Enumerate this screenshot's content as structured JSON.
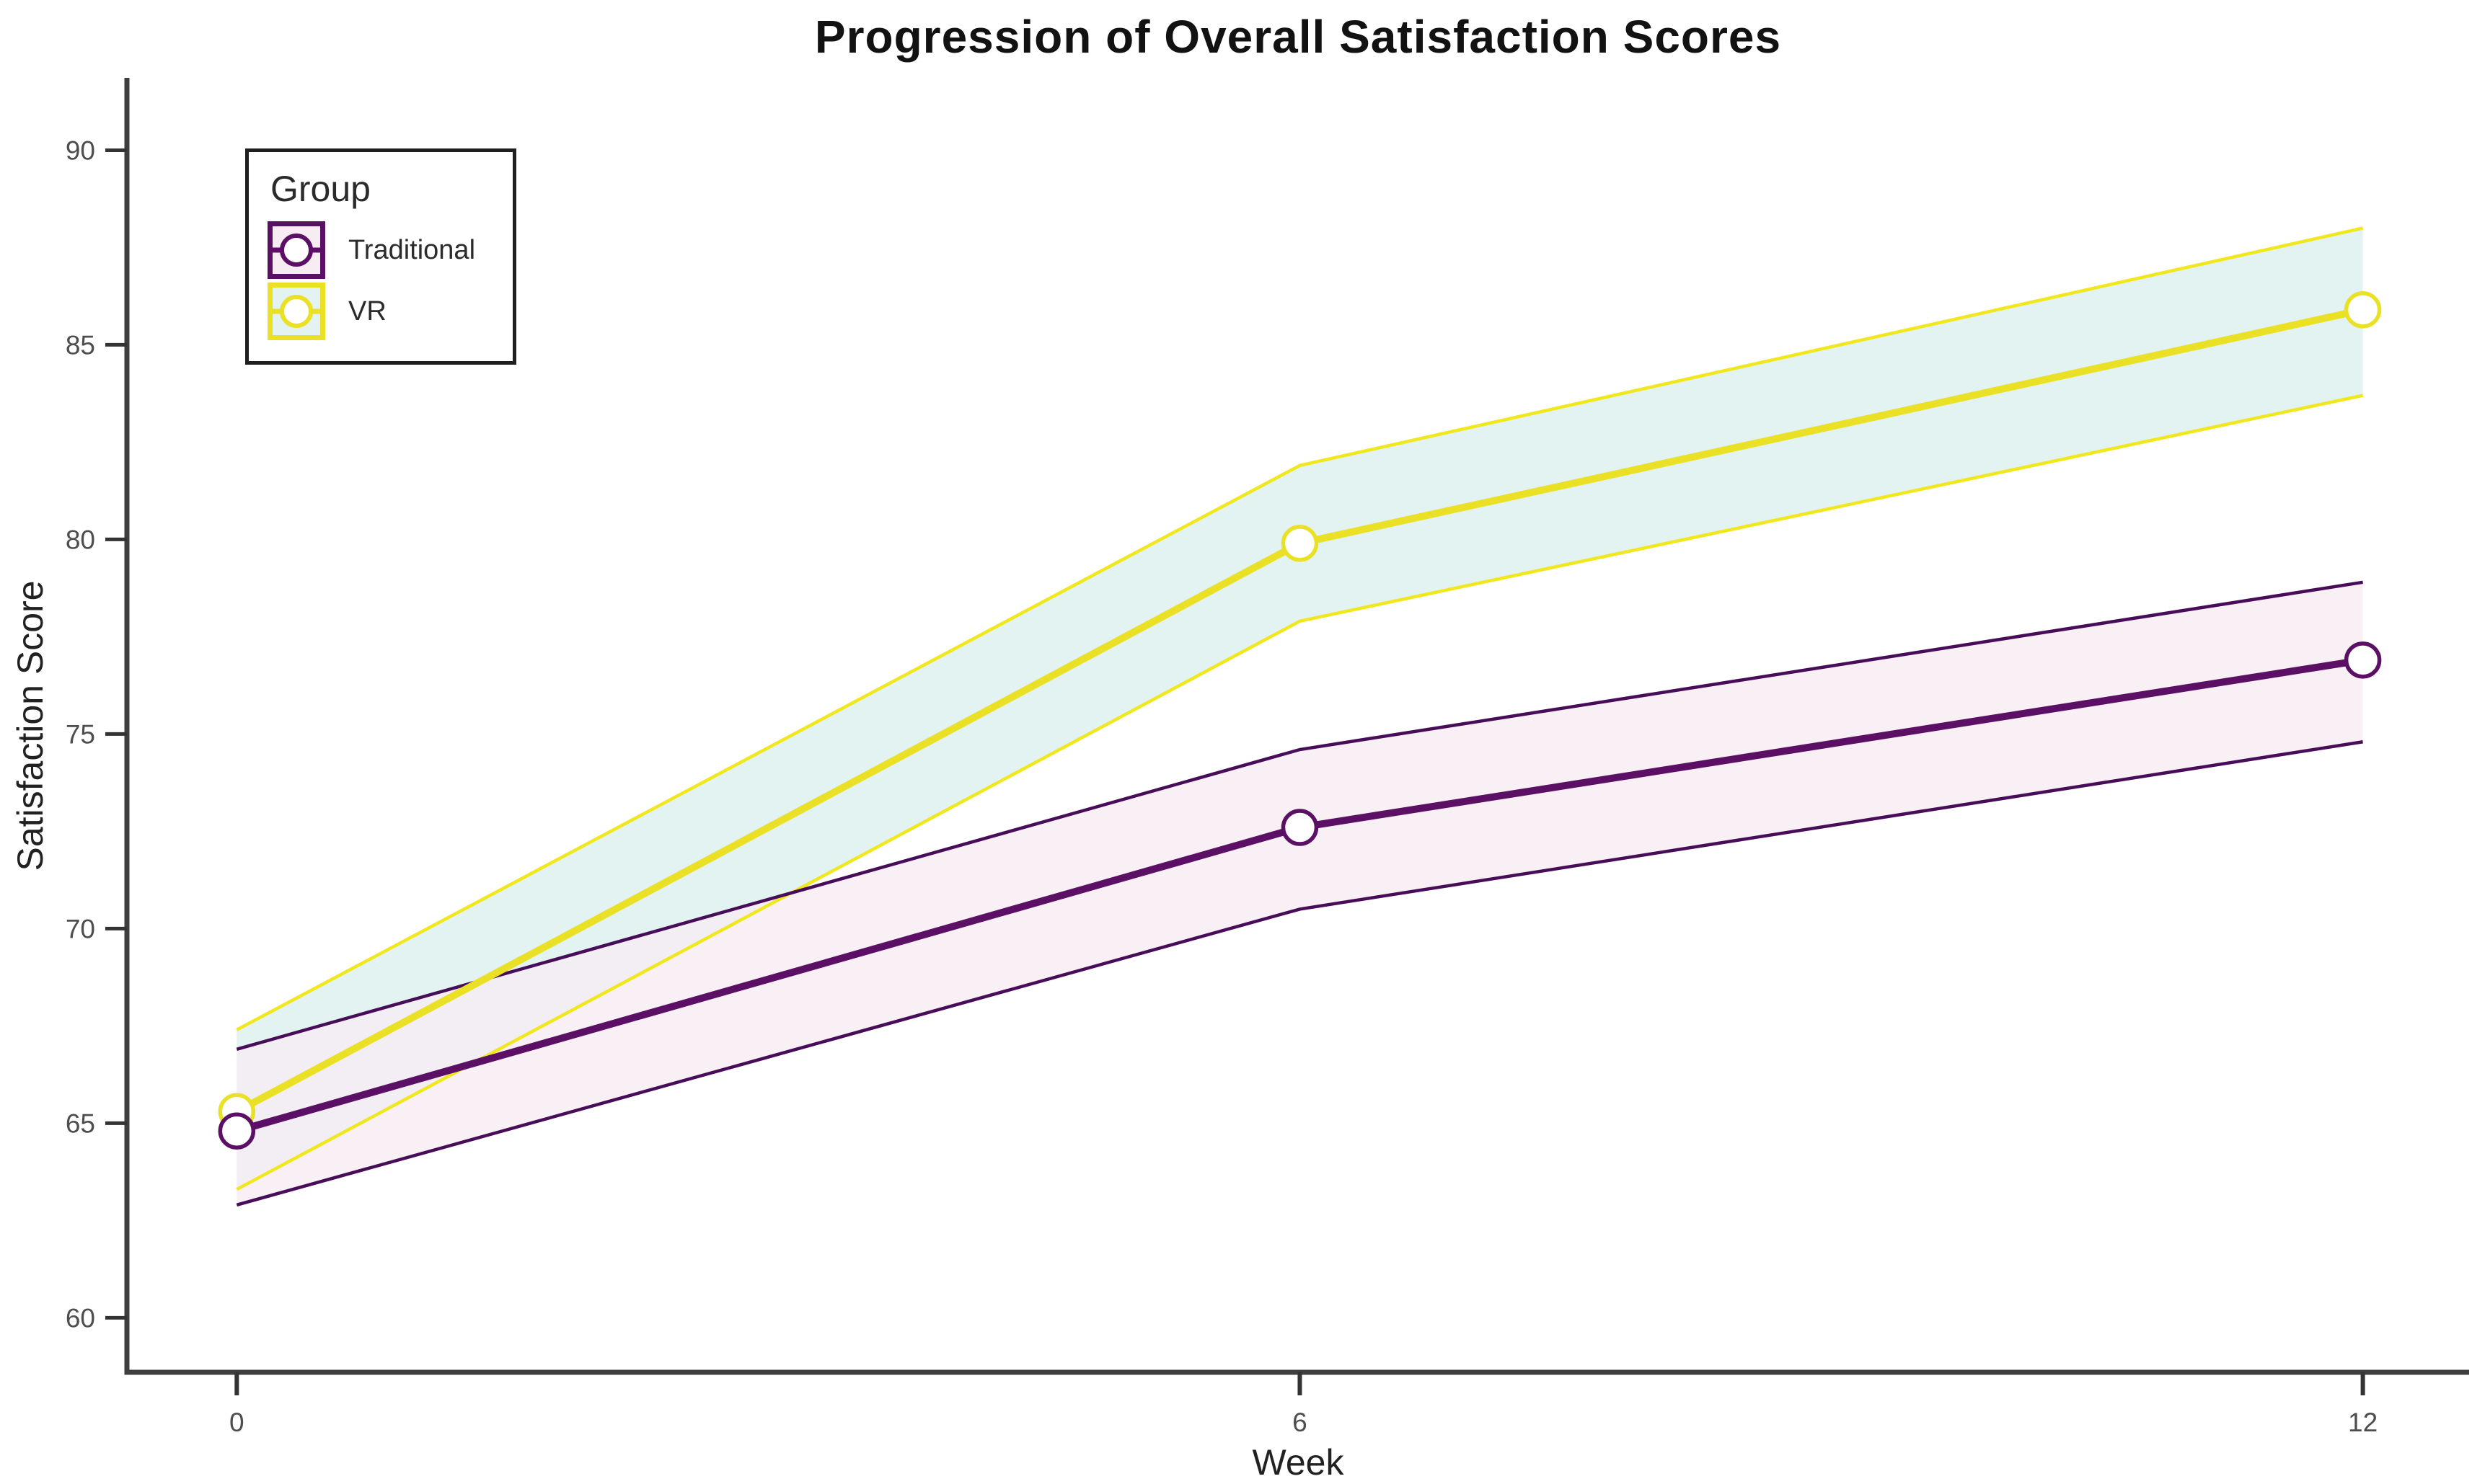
{
  "page": {
    "title": "Progression of Overall Satisfaction Scores"
  },
  "colors": {
    "background": "#FFFFFF",
    "title_text": "#121212",
    "axis_line": "#3F3F3F",
    "tick_mark": "#333333",
    "tick_label": "#4D4D4D",
    "axis_title_text": "#212121",
    "legend_border": "#1F1F1F",
    "legend_text": "#2B2B2B"
  },
  "chart_data": {
    "type": "line",
    "title": "Progression of Overall Satisfaction Scores",
    "xlabel": "Week",
    "ylabel": "Satisfaction Score",
    "x": [
      0,
      6,
      12
    ],
    "x_tick_labels": [
      "0",
      "6",
      "12"
    ],
    "y_ticks": [
      60,
      65,
      70,
      75,
      80,
      85,
      90
    ],
    "xlim": [
      -0.62,
      12.6
    ],
    "ylim": [
      58.6,
      91.86
    ],
    "grid": false,
    "marker": "open-circle",
    "legend": {
      "title": "Group",
      "position": "inside-top-left"
    },
    "series": [
      {
        "name": "Traditional",
        "line_color": "#5B1065",
        "edge_color": "#470D59",
        "band_fill": "#F7ECF2",
        "mean": [
          64.8,
          72.6,
          76.9
        ],
        "lower": [
          62.9,
          70.5,
          74.8
        ],
        "upper": [
          66.9,
          74.6,
          78.9
        ]
      },
      {
        "name": "VR",
        "line_color": "#EAE127",
        "edge_color": "#F1E71D",
        "band_fill": "#E2F3F2",
        "mean": [
          65.3,
          79.9,
          85.9
        ],
        "lower": [
          63.3,
          77.9,
          83.7
        ],
        "upper": [
          67.4,
          81.9,
          88.0
        ]
      }
    ]
  }
}
